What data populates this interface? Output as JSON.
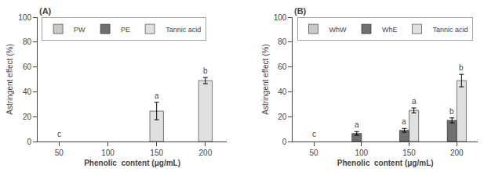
{
  "chart_data": [
    {
      "type": "bar",
      "title": "(A)",
      "xlabel": "Phenolic  content (μg/mL)",
      "ylabel": "Astringent effect (%)",
      "x": [
        50,
        100,
        150,
        200
      ],
      "xlim": [
        28,
        222
      ],
      "xticks": [
        50,
        100,
        150,
        200
      ],
      "ylim": [
        0,
        100
      ],
      "yticks": [
        0,
        20,
        40,
        60,
        80,
        100
      ],
      "grid": false,
      "legend": "upper left",
      "series": [
        {
          "name": "PW",
          "color": "#c8c8c8",
          "values": [
            null,
            null,
            null,
            null
          ]
        },
        {
          "name": "PE",
          "color": "#707070",
          "values": [
            null,
            null,
            null,
            null
          ]
        },
        {
          "name": "Tannic acid",
          "color": "#e0e0e0",
          "values": [
            null,
            null,
            24.5,
            49.0
          ],
          "errors": [
            null,
            null,
            7.0,
            2.5
          ],
          "letters": [
            null,
            null,
            "a",
            "b"
          ]
        }
      ],
      "annotations": [
        {
          "text": "c",
          "x": 50,
          "y": 1.5
        }
      ]
    },
    {
      "type": "bar",
      "title": "(B)",
      "xlabel": "Phenolic  content (μg/mL)",
      "ylabel": "Astringent effect (%)",
      "x": [
        50,
        100,
        150,
        200
      ],
      "xlim": [
        28,
        222
      ],
      "xticks": [
        50,
        100,
        150,
        200
      ],
      "ylim": [
        0,
        100
      ],
      "yticks": [
        0,
        20,
        40,
        60,
        80,
        100
      ],
      "grid": false,
      "legend": "upper left",
      "series": [
        {
          "name": "WhW",
          "color": "#c8c8c8",
          "values": [
            null,
            null,
            null,
            null
          ]
        },
        {
          "name": "WhE",
          "color": "#707070",
          "values": [
            null,
            6.5,
            9.0,
            17.0
          ],
          "errors": [
            null,
            1.5,
            1.5,
            2.0
          ],
          "letters": [
            null,
            "a",
            "a",
            "b"
          ]
        },
        {
          "name": "Tannic acid",
          "color": "#e0e0e0",
          "values": [
            null,
            null,
            25.0,
            49.0
          ],
          "errors": [
            null,
            null,
            2.0,
            5.0
          ],
          "letters": [
            null,
            null,
            "a",
            "b"
          ]
        }
      ],
      "annotations": [
        {
          "text": "c",
          "x": 50,
          "y": 1.5
        }
      ]
    }
  ]
}
